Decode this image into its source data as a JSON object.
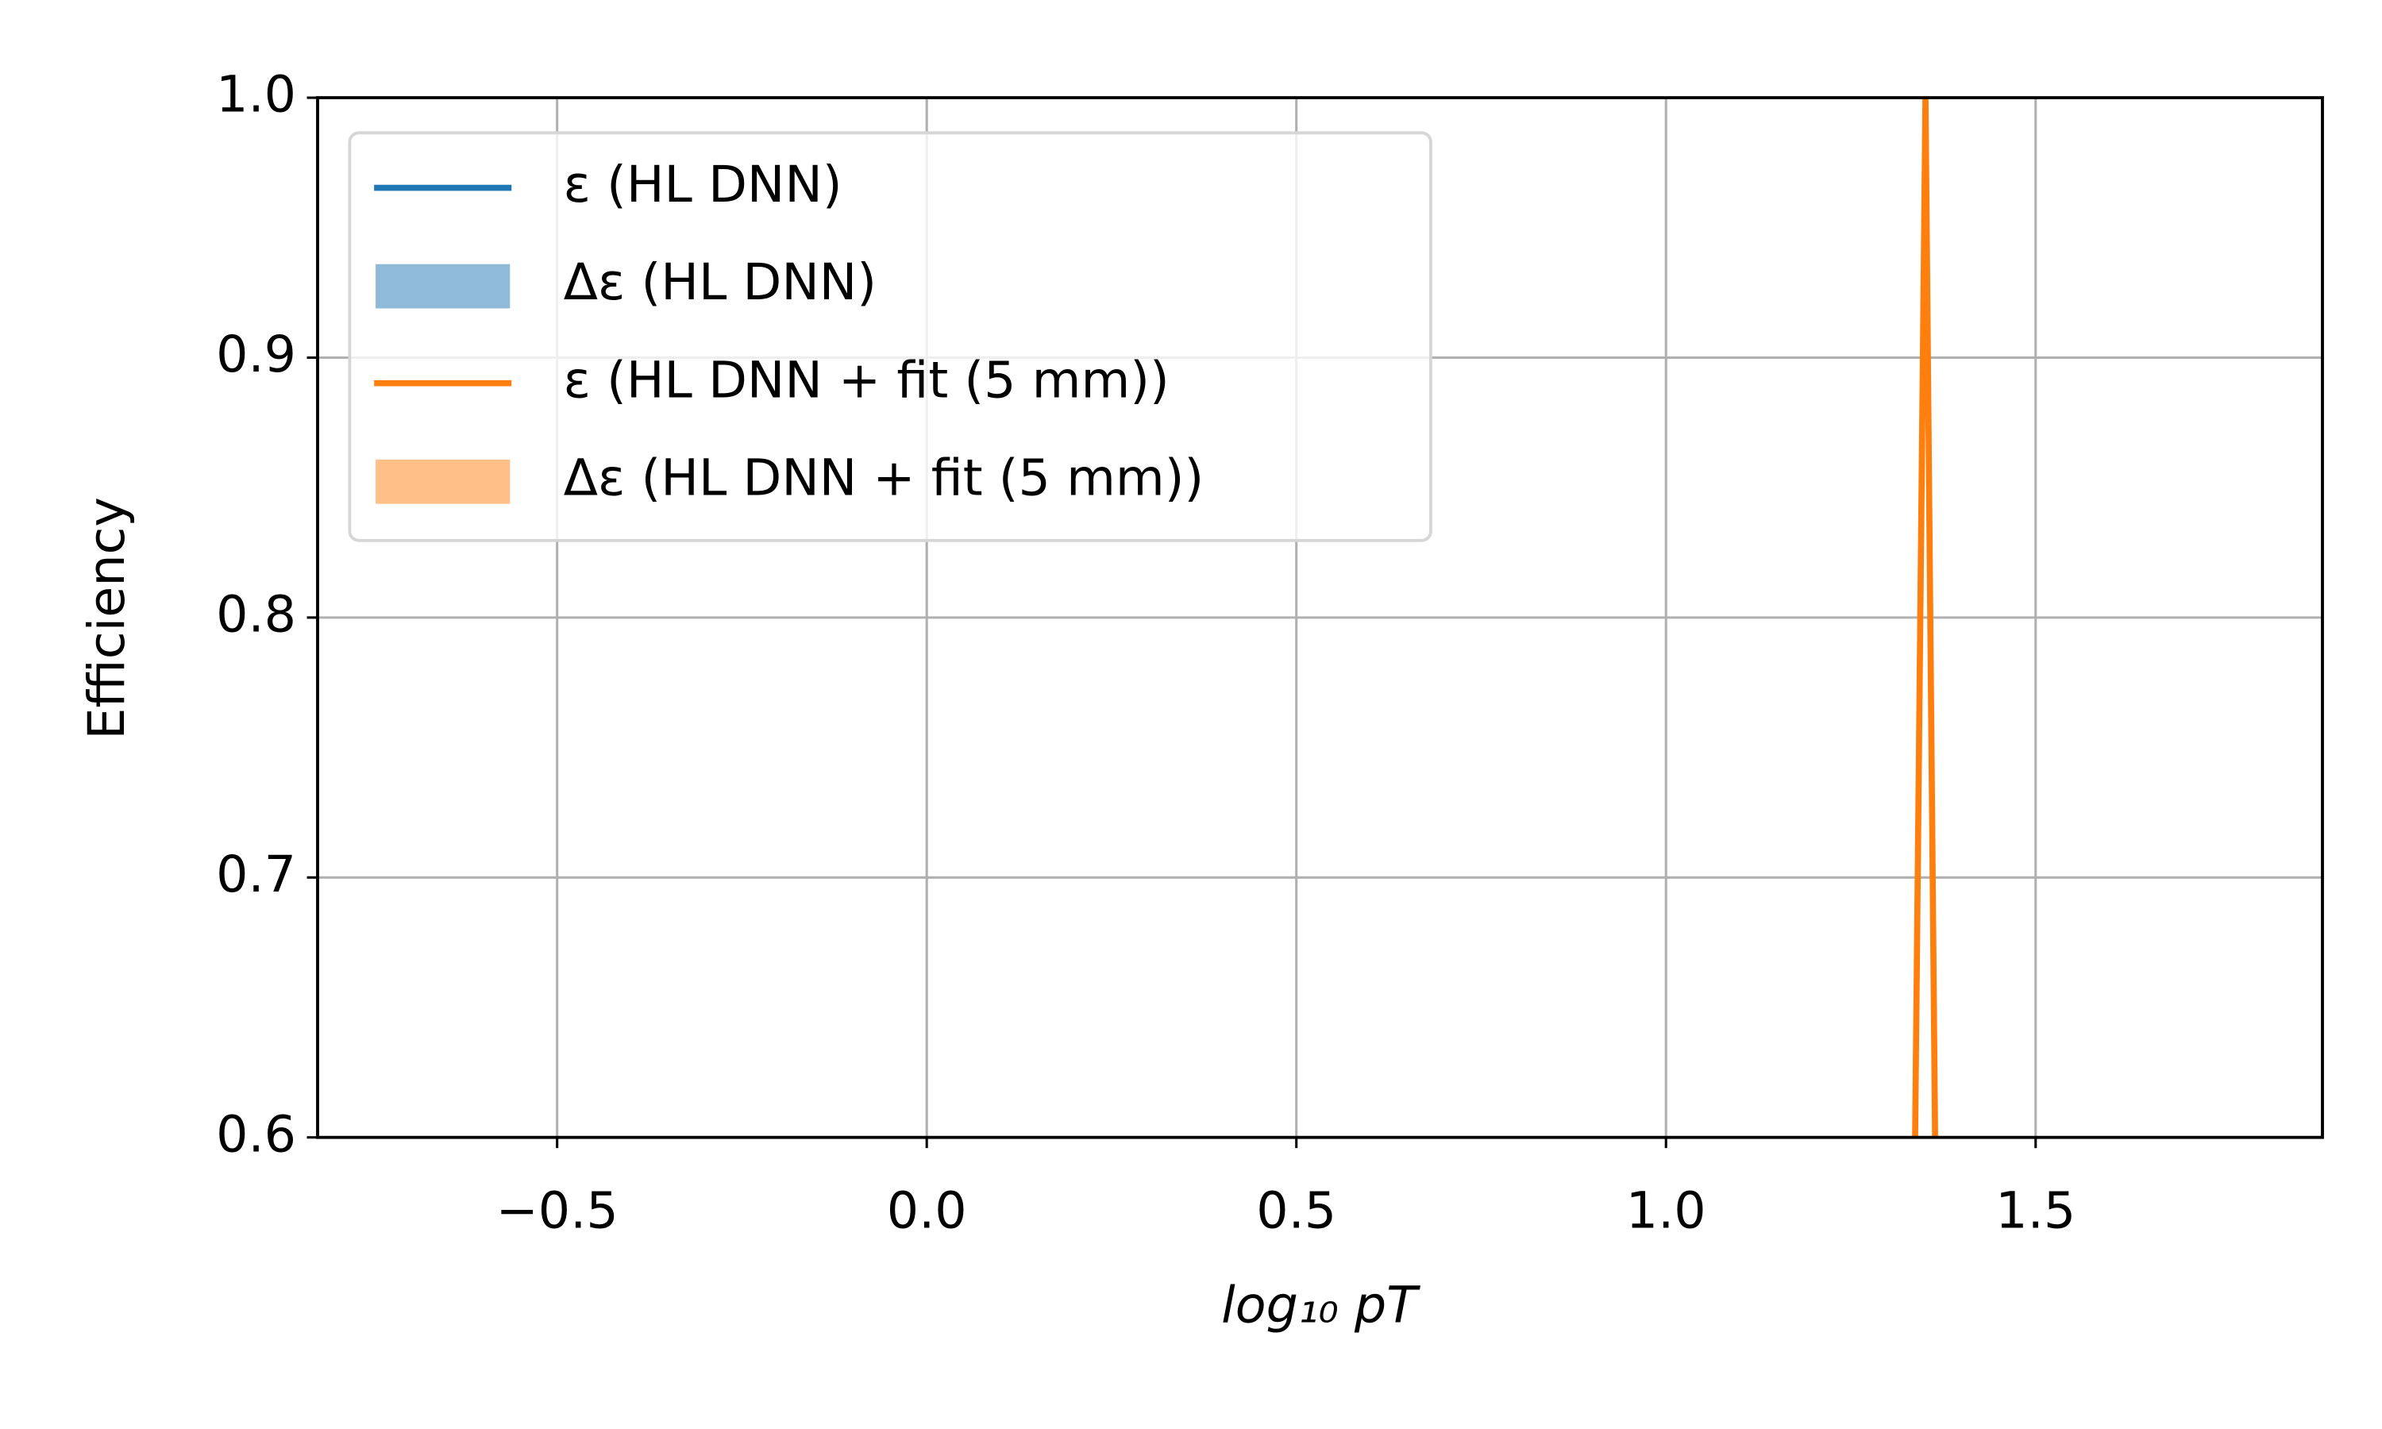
{
  "chart_data": {
    "type": "line",
    "xlabel": "log₁₀ pT",
    "ylabel": "Efficiency",
    "xlim": [
      -0.824,
      1.888
    ],
    "ylim": [
      0.6,
      1.0
    ],
    "xticks": [
      {
        "value": -0.5,
        "label": "−0.5"
      },
      {
        "value": 0,
        "label": "0.0"
      },
      0.5,
      {
        "value": 1,
        "label": "1.0"
      },
      1.5
    ],
    "yticks": [
      0.6,
      0.7,
      0.8,
      0.9,
      {
        "value": 1,
        "label": "1.0"
      }
    ],
    "grid": true,
    "legend": "upper left",
    "series": [
      {
        "name": "ε (HL DNN)",
        "kind": "line",
        "color": "#1f77b4",
        "x": [],
        "values": []
      },
      {
        "name": "Δε (HL DNN)",
        "kind": "band",
        "color": "#8fbbd9",
        "x": [],
        "values": []
      },
      {
        "name": "ε (HL DNN + fit (5 mm))",
        "kind": "line",
        "color": "#ff7f0e",
        "x": [
          1.337,
          1.351,
          1.364
        ],
        "values": [
          0.6,
          1.0,
          0.6
        ]
      },
      {
        "name": "Δε (HL DNN + fit (5 mm))",
        "kind": "band",
        "color": "#ffbf86",
        "x": [],
        "values": []
      }
    ]
  }
}
